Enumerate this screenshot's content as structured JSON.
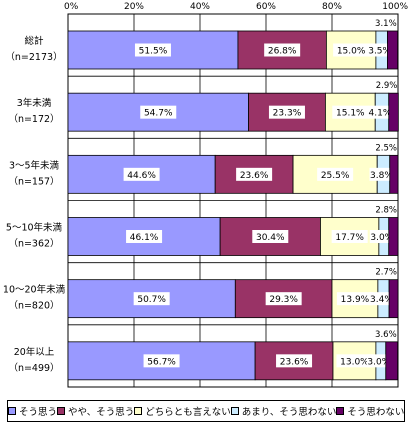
{
  "chart_data": {
    "type": "bar",
    "orientation": "horizontal",
    "stacked": true,
    "x_ticks": [
      "0%",
      "20%",
      "40%",
      "60%",
      "80%",
      "100%"
    ],
    "xlim": [
      0,
      100
    ],
    "categories": [
      [
        "総計",
        "（n=2173）"
      ],
      [
        "3年未満",
        "（n=172）"
      ],
      [
        "3～5年未満",
        "（n=157）"
      ],
      [
        "5～10年未満",
        "（n=362）"
      ],
      [
        "10～20年未満",
        "（n=820）"
      ],
      [
        "20年以上",
        "（n=499）"
      ]
    ],
    "series": [
      {
        "name": "そう思う",
        "color": "#9999ff",
        "values": [
          51.5,
          54.7,
          44.6,
          46.1,
          50.7,
          56.7
        ],
        "labels": [
          "51.5%",
          "54.7%",
          "44.6%",
          "46.1%",
          "50.7%",
          "56.7%"
        ]
      },
      {
        "name": "やや、そう思う",
        "color": "#993366",
        "values": [
          26.8,
          23.3,
          23.6,
          30.4,
          29.3,
          23.6
        ],
        "labels": [
          "26.8%",
          "23.3%",
          "23.6%",
          "30.4%",
          "29.3%",
          "23.6%"
        ]
      },
      {
        "name": "どちらとも言えない",
        "color": "#ffffcc",
        "values": [
          15.0,
          15.1,
          25.5,
          17.7,
          13.9,
          13.0
        ],
        "labels": [
          "15.0%",
          "15.1%",
          "25.5%",
          "17.7%",
          "13.9%",
          "13.0%"
        ]
      },
      {
        "name": "あまり、そう思わない",
        "color": "#ccecff",
        "values": [
          3.5,
          4.1,
          3.8,
          3.0,
          3.4,
          3.0
        ],
        "labels": [
          "3.5%",
          "4.1%",
          "3.8%",
          "3.0%",
          "3.4%",
          "3.0%"
        ]
      },
      {
        "name": "そう思わない",
        "color": "#660066",
        "values": [
          3.1,
          2.9,
          2.5,
          2.8,
          2.7,
          3.6
        ],
        "labels": [
          "3.1%",
          "2.9%",
          "2.5%",
          "2.8%",
          "2.7%",
          "3.6%"
        ]
      }
    ],
    "legend_position": "bottom",
    "grid": true
  }
}
